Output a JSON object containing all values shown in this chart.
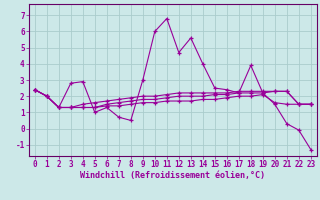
{
  "xlabel": "Windchill (Refroidissement éolien,°C)",
  "bg_color": "#cce8e8",
  "line_color": "#990099",
  "grid_color": "#aacccc",
  "axis_color": "#660066",
  "xlim": [
    -0.5,
    23.5
  ],
  "ylim": [
    -1.7,
    7.7
  ],
  "yticks": [
    -1,
    0,
    1,
    2,
    3,
    4,
    5,
    6,
    7
  ],
  "xticks": [
    0,
    1,
    2,
    3,
    4,
    5,
    6,
    7,
    8,
    9,
    10,
    11,
    12,
    13,
    14,
    15,
    16,
    17,
    18,
    19,
    20,
    21,
    22,
    23
  ],
  "series": [
    [
      2.4,
      2.0,
      1.3,
      2.8,
      2.9,
      1.0,
      1.3,
      0.7,
      0.5,
      3.0,
      6.0,
      6.8,
      4.7,
      5.6,
      4.0,
      2.5,
      2.4,
      2.2,
      3.9,
      2.2,
      1.5,
      0.3,
      -0.1,
      -1.3
    ],
    [
      2.4,
      2.0,
      1.3,
      1.3,
      1.3,
      1.3,
      1.4,
      1.4,
      1.5,
      1.6,
      1.6,
      1.7,
      1.7,
      1.7,
      1.8,
      1.8,
      1.9,
      2.0,
      2.0,
      2.1,
      1.6,
      1.5,
      1.5,
      1.5
    ],
    [
      2.4,
      2.0,
      1.3,
      1.3,
      1.3,
      1.3,
      1.5,
      1.6,
      1.7,
      1.8,
      1.8,
      1.9,
      2.0,
      2.0,
      2.0,
      2.1,
      2.1,
      2.2,
      2.2,
      2.2,
      2.3,
      2.3,
      1.5,
      1.5
    ],
    [
      2.4,
      2.0,
      1.3,
      1.3,
      1.5,
      1.6,
      1.7,
      1.8,
      1.9,
      2.0,
      2.0,
      2.1,
      2.2,
      2.2,
      2.2,
      2.2,
      2.2,
      2.3,
      2.3,
      2.3,
      2.3,
      2.3,
      1.5,
      1.5
    ]
  ],
  "tick_fontsize": 5.5,
  "xlabel_fontsize": 6.0,
  "linewidth": 0.8,
  "markersize": 3.5
}
